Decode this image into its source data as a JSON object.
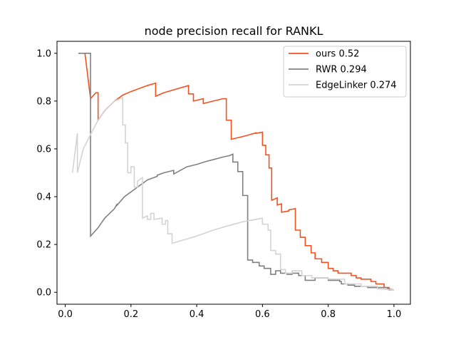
{
  "chart_data": {
    "type": "line",
    "title": "node precision recall for RANKL",
    "xlabel": "",
    "ylabel": "",
    "xlim": [
      -0.025,
      1.05
    ],
    "ylim": [
      -0.05,
      1.05
    ],
    "x_ticks": [
      0.0,
      0.2,
      0.4,
      0.6,
      0.8,
      1.0
    ],
    "y_ticks": [
      0.0,
      0.2,
      0.4,
      0.6,
      0.8,
      1.0
    ],
    "x_tick_labels": [
      "0.0",
      "0.2",
      "0.4",
      "0.6",
      "0.8",
      "1.0"
    ],
    "y_tick_labels": [
      "0.0",
      "0.2",
      "0.4",
      "0.6",
      "0.8",
      "1.0"
    ],
    "grid": false,
    "legend_position": "upper right",
    "series": [
      {
        "name": "ours 0.52",
        "color": "#f4511e",
        "points": [
          [
            0.06,
            1.0
          ],
          [
            0.077,
            0.81
          ],
          [
            0.093,
            0.835
          ],
          [
            0.1,
            0.835
          ],
          [
            0.1,
            0.72
          ],
          [
            0.12,
            0.76
          ],
          [
            0.15,
            0.8
          ],
          [
            0.175,
            0.825
          ],
          [
            0.2,
            0.84
          ],
          [
            0.25,
            0.865
          ],
          [
            0.275,
            0.875
          ],
          [
            0.275,
            0.82
          ],
          [
            0.3,
            0.835
          ],
          [
            0.35,
            0.855
          ],
          [
            0.375,
            0.865
          ],
          [
            0.375,
            0.83
          ],
          [
            0.39,
            0.83
          ],
          [
            0.39,
            0.8
          ],
          [
            0.42,
            0.81
          ],
          [
            0.42,
            0.79
          ],
          [
            0.45,
            0.8
          ],
          [
            0.48,
            0.81
          ],
          [
            0.49,
            0.81
          ],
          [
            0.49,
            0.72
          ],
          [
            0.505,
            0.72
          ],
          [
            0.505,
            0.64
          ],
          [
            0.55,
            0.655
          ],
          [
            0.58,
            0.667
          ],
          [
            0.58,
            0.665
          ],
          [
            0.6,
            0.67
          ],
          [
            0.6,
            0.615
          ],
          [
            0.61,
            0.615
          ],
          [
            0.61,
            0.575
          ],
          [
            0.62,
            0.575
          ],
          [
            0.62,
            0.52
          ],
          [
            0.628,
            0.52
          ],
          [
            0.628,
            0.385
          ],
          [
            0.645,
            0.395
          ],
          [
            0.645,
            0.365
          ],
          [
            0.658,
            0.37
          ],
          [
            0.658,
            0.335
          ],
          [
            0.68,
            0.34
          ],
          [
            0.68,
            0.345
          ],
          [
            0.7,
            0.35
          ],
          [
            0.7,
            0.26
          ],
          [
            0.715,
            0.26
          ],
          [
            0.715,
            0.23
          ],
          [
            0.73,
            0.23
          ],
          [
            0.73,
            0.195
          ],
          [
            0.748,
            0.195
          ],
          [
            0.748,
            0.165
          ],
          [
            0.76,
            0.165
          ],
          [
            0.76,
            0.14
          ],
          [
            0.78,
            0.14
          ],
          [
            0.78,
            0.125
          ],
          [
            0.8,
            0.125
          ],
          [
            0.8,
            0.1
          ],
          [
            0.815,
            0.1
          ],
          [
            0.815,
            0.09
          ],
          [
            0.83,
            0.09
          ],
          [
            0.83,
            0.08
          ],
          [
            0.87,
            0.08
          ],
          [
            0.87,
            0.07
          ],
          [
            0.885,
            0.07
          ],
          [
            0.885,
            0.06
          ],
          [
            0.9,
            0.06
          ],
          [
            0.9,
            0.055
          ],
          [
            0.93,
            0.055
          ],
          [
            0.93,
            0.045
          ],
          [
            0.945,
            0.045
          ],
          [
            0.945,
            0.035
          ],
          [
            0.97,
            0.035
          ],
          [
            0.97,
            0.02
          ],
          [
            0.985,
            0.02
          ],
          [
            0.985,
            0.01
          ],
          [
            1.0,
            0.01
          ]
        ]
      },
      {
        "name": "RWR 0.294",
        "color": "#808080",
        "points": [
          [
            0.04,
            1.0
          ],
          [
            0.077,
            1.0
          ],
          [
            0.077,
            0.235
          ],
          [
            0.1,
            0.27
          ],
          [
            0.12,
            0.31
          ],
          [
            0.15,
            0.35
          ],
          [
            0.158,
            0.37
          ],
          [
            0.158,
            0.365
          ],
          [
            0.18,
            0.4
          ],
          [
            0.2,
            0.42
          ],
          [
            0.23,
            0.45
          ],
          [
            0.25,
            0.47
          ],
          [
            0.28,
            0.485
          ],
          [
            0.28,
            0.49
          ],
          [
            0.3,
            0.5
          ],
          [
            0.33,
            0.51
          ],
          [
            0.33,
            0.495
          ],
          [
            0.35,
            0.51
          ],
          [
            0.37,
            0.525
          ],
          [
            0.4,
            0.535
          ],
          [
            0.43,
            0.548
          ],
          [
            0.45,
            0.555
          ],
          [
            0.48,
            0.566
          ],
          [
            0.5,
            0.572
          ],
          [
            0.51,
            0.578
          ],
          [
            0.51,
            0.545
          ],
          [
            0.525,
            0.545
          ],
          [
            0.525,
            0.505
          ],
          [
            0.54,
            0.505
          ],
          [
            0.54,
            0.405
          ],
          [
            0.555,
            0.405
          ],
          [
            0.555,
            0.135
          ],
          [
            0.57,
            0.135
          ],
          [
            0.57,
            0.125
          ],
          [
            0.59,
            0.125
          ],
          [
            0.59,
            0.11
          ],
          [
            0.605,
            0.11
          ],
          [
            0.605,
            0.1
          ],
          [
            0.625,
            0.1
          ],
          [
            0.625,
            0.075
          ],
          [
            0.64,
            0.075
          ],
          [
            0.64,
            0.09
          ],
          [
            0.655,
            0.09
          ],
          [
            0.655,
            0.08
          ],
          [
            0.675,
            0.08
          ],
          [
            0.675,
            0.075
          ],
          [
            0.69,
            0.075
          ],
          [
            0.69,
            0.08
          ],
          [
            0.71,
            0.08
          ],
          [
            0.71,
            0.07
          ],
          [
            0.73,
            0.07
          ],
          [
            0.73,
            0.05
          ],
          [
            0.76,
            0.05
          ],
          [
            0.76,
            0.06
          ],
          [
            0.8,
            0.06
          ],
          [
            0.8,
            0.05
          ],
          [
            0.835,
            0.05
          ],
          [
            0.835,
            0.045
          ],
          [
            0.84,
            0.045
          ],
          [
            0.84,
            0.035
          ],
          [
            0.86,
            0.035
          ],
          [
            0.86,
            0.03
          ],
          [
            0.88,
            0.03
          ],
          [
            0.88,
            0.025
          ],
          [
            0.92,
            0.025
          ],
          [
            0.92,
            0.02
          ],
          [
            0.98,
            0.02
          ],
          [
            0.98,
            0.015
          ],
          [
            1.0,
            0.01
          ]
        ]
      },
      {
        "name": "EdgeLinker 0.274",
        "color": "#d3d3d3",
        "points": [
          [
            0.022,
            0.5
          ],
          [
            0.037,
            0.665
          ],
          [
            0.037,
            0.5
          ],
          [
            0.055,
            0.6
          ],
          [
            0.077,
            0.66
          ],
          [
            0.1,
            0.72
          ],
          [
            0.12,
            0.76
          ],
          [
            0.15,
            0.8
          ],
          [
            0.175,
            0.815
          ],
          [
            0.175,
            0.7
          ],
          [
            0.183,
            0.7
          ],
          [
            0.183,
            0.625
          ],
          [
            0.19,
            0.625
          ],
          [
            0.19,
            0.5
          ],
          [
            0.2,
            0.5
          ],
          [
            0.2,
            0.525
          ],
          [
            0.21,
            0.525
          ],
          [
            0.21,
            0.44
          ],
          [
            0.22,
            0.44
          ],
          [
            0.22,
            0.465
          ],
          [
            0.235,
            0.48
          ],
          [
            0.235,
            0.31
          ],
          [
            0.25,
            0.32
          ],
          [
            0.25,
            0.305
          ],
          [
            0.26,
            0.305
          ],
          [
            0.26,
            0.33
          ],
          [
            0.27,
            0.33
          ],
          [
            0.27,
            0.305
          ],
          [
            0.295,
            0.31
          ],
          [
            0.295,
            0.285
          ],
          [
            0.305,
            0.285
          ],
          [
            0.305,
            0.3
          ],
          [
            0.312,
            0.3
          ],
          [
            0.312,
            0.245
          ],
          [
            0.325,
            0.245
          ],
          [
            0.325,
            0.205
          ],
          [
            0.35,
            0.215
          ],
          [
            0.4,
            0.235
          ],
          [
            0.45,
            0.26
          ],
          [
            0.5,
            0.28
          ],
          [
            0.54,
            0.295
          ],
          [
            0.58,
            0.305
          ],
          [
            0.6,
            0.31
          ],
          [
            0.6,
            0.285
          ],
          [
            0.617,
            0.285
          ],
          [
            0.617,
            0.26
          ],
          [
            0.625,
            0.26
          ],
          [
            0.625,
            0.175
          ],
          [
            0.64,
            0.175
          ],
          [
            0.64,
            0.16
          ],
          [
            0.645,
            0.16
          ],
          [
            0.645,
            0.16
          ],
          [
            0.655,
            0.16
          ],
          [
            0.655,
            0.095
          ],
          [
            0.67,
            0.095
          ],
          [
            0.67,
            0.08
          ],
          [
            0.69,
            0.08
          ],
          [
            0.69,
            0.09
          ],
          [
            0.72,
            0.09
          ],
          [
            0.72,
            0.07
          ],
          [
            0.75,
            0.07
          ],
          [
            0.75,
            0.06
          ],
          [
            0.8,
            0.06
          ],
          [
            0.8,
            0.055
          ],
          [
            0.85,
            0.055
          ],
          [
            0.85,
            0.035
          ],
          [
            0.9,
            0.035
          ],
          [
            0.9,
            0.025
          ],
          [
            0.95,
            0.025
          ],
          [
            0.95,
            0.015
          ],
          [
            1.0,
            0.01
          ]
        ]
      }
    ]
  }
}
